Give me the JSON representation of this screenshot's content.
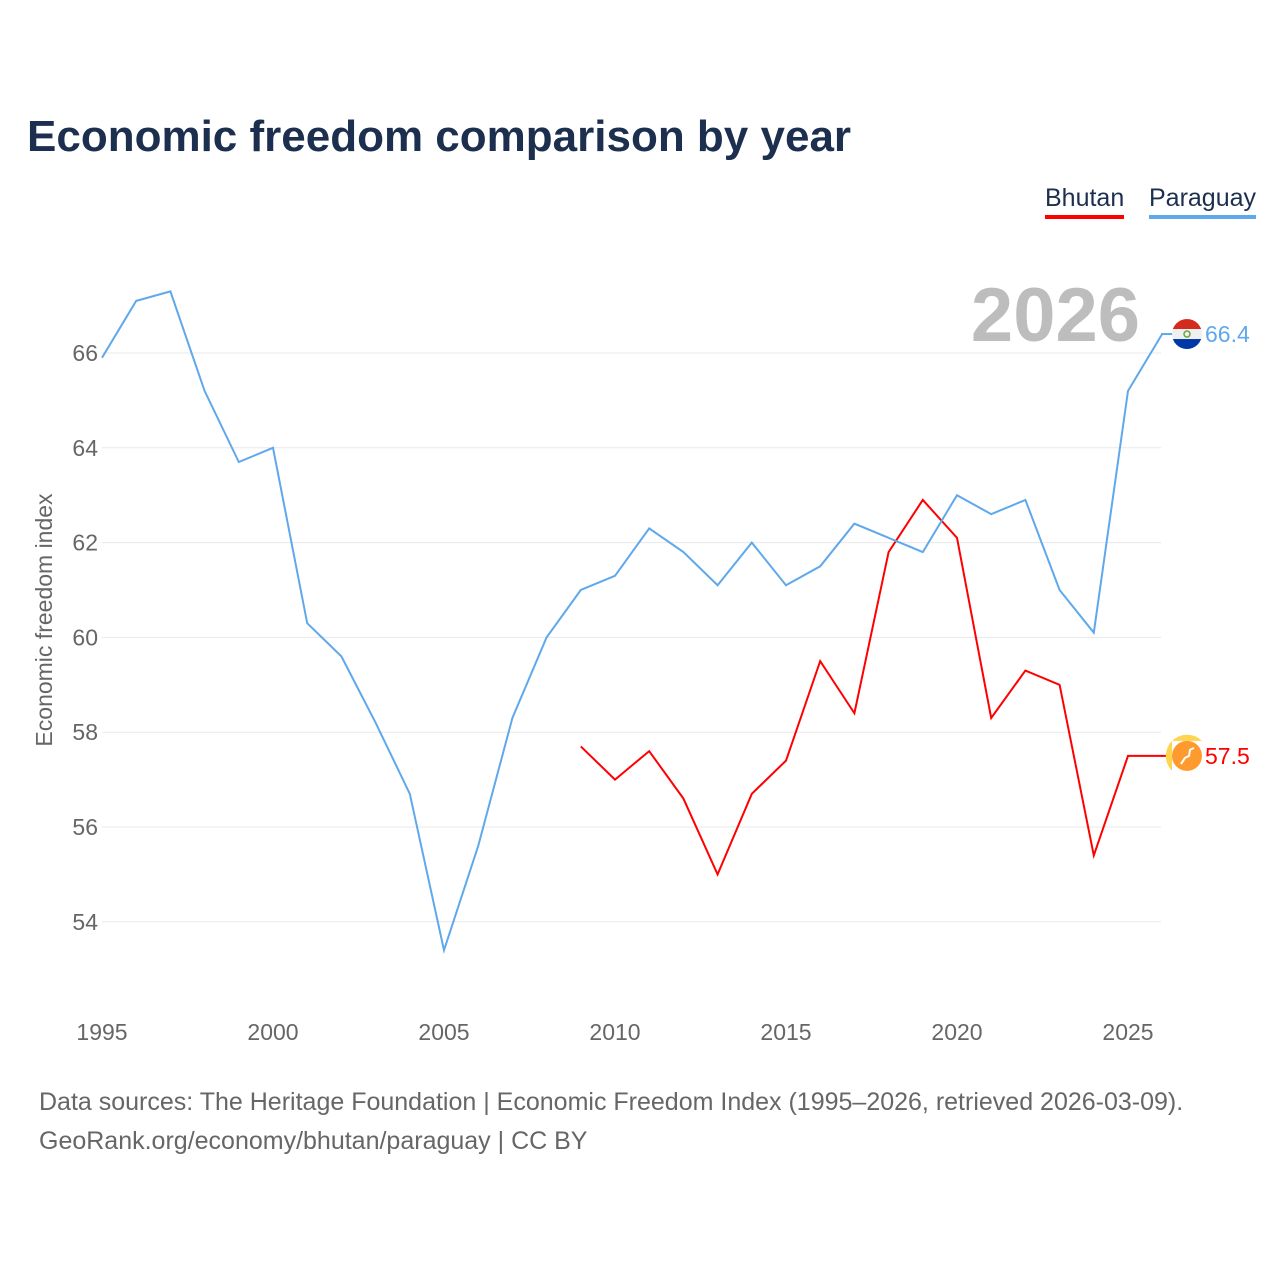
{
  "chart_data": {
    "type": "line",
    "title": "Economic freedom comparison by year",
    "ylabel": "Economic freedom index",
    "xlabel": "",
    "xlim": [
      1995,
      2026
    ],
    "ylim": [
      52.5,
      67.5
    ],
    "x_ticks": [
      1995,
      2000,
      2005,
      2010,
      2015,
      2020,
      2025
    ],
    "y_ticks": [
      54,
      56,
      58,
      60,
      62,
      64,
      66
    ],
    "grid": true,
    "legend_position": "top-right",
    "highlight_year": "2026",
    "series": [
      {
        "name": "Bhutan",
        "color": "#ff0000",
        "end_label": "57.5",
        "x": [
          2009,
          2010,
          2011,
          2012,
          2013,
          2014,
          2015,
          2016,
          2017,
          2018,
          2019,
          2020,
          2021,
          2022,
          2023,
          2024,
          2025,
          2026
        ],
        "values": [
          57.7,
          57.0,
          57.6,
          56.6,
          55.0,
          56.7,
          57.4,
          59.5,
          58.4,
          61.8,
          62.9,
          62.1,
          58.3,
          59.3,
          59.0,
          55.4,
          57.5,
          57.5
        ]
      },
      {
        "name": "Paraguay",
        "color": "#5fa8eb",
        "end_label": "66.4",
        "x": [
          1995,
          1996,
          1997,
          1998,
          1999,
          2000,
          2001,
          2002,
          2003,
          2004,
          2005,
          2006,
          2007,
          2008,
          2009,
          2010,
          2011,
          2012,
          2013,
          2014,
          2015,
          2016,
          2017,
          2018,
          2019,
          2020,
          2021,
          2022,
          2023,
          2024,
          2025,
          2026
        ],
        "values": [
          65.9,
          67.1,
          67.3,
          65.2,
          63.7,
          64.0,
          60.3,
          59.6,
          58.2,
          56.7,
          53.4,
          55.6,
          58.3,
          60.0,
          61.0,
          61.3,
          62.3,
          61.8,
          61.1,
          62.0,
          61.1,
          61.5,
          62.4,
          62.1,
          61.8,
          63.0,
          62.6,
          62.9,
          61.0,
          60.1,
          65.2,
          66.4
        ]
      }
    ]
  },
  "source_line1": "Data sources: The Heritage Foundation | Economic Freedom Index (1995–2026, retrieved 2026-03-09).",
  "source_line2": "GeoRank.org/economy/bhutan/paraguay | CC BY"
}
